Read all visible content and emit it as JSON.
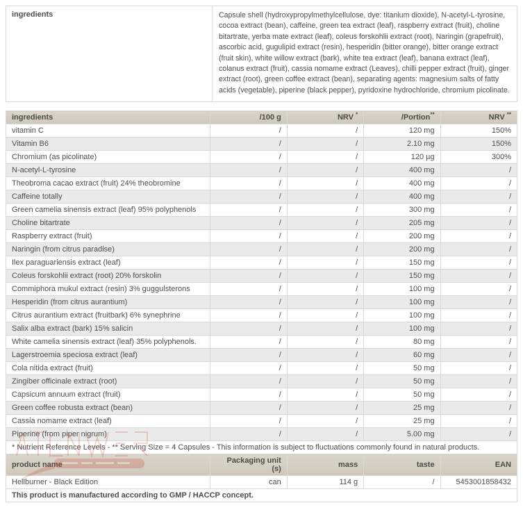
{
  "info_block": {
    "label": "ingredients",
    "text": "Capsule shell (hydroxypropylmethylcellulose, dye: titanium dioxide), N-acetyl-L-tyrosine, cocoa extract (bean), caffeine, green tea extract (leaf), raspberry extract (fruit), choline bitartrate, yerba mate extract (leaf), coleus forskohlii extract (root), Naringin (grapefruit), ascorbic acid, gugulipid extract (resin), hesperidin (bitter orange), bitter orange extract (fruit skin), white willow extract (bark), white tea extract (leaf), banana extract (leaf), colanus extract (fruit), cassia nomame extract (Leaves), chilli pepper extract (fruit), ginger extract (root), green coffee extract (bean), separating agents: magnesium salts of fatty acids (vegetable), piperine (black pepper), pyridoxine hydrochloride, chromium picolinate."
  },
  "nutrition_table": {
    "headers": [
      {
        "text": "ingredients",
        "sup": ""
      },
      {
        "text": "/100 g",
        "sup": ""
      },
      {
        "text": "NRV",
        "sup": "*"
      },
      {
        "text": "/Portion",
        "sup": "**"
      },
      {
        "text": "NRV",
        "sup": "**"
      }
    ],
    "rows": [
      [
        "vitamin C",
        "/",
        "/",
        "120 mg",
        "150%"
      ],
      [
        "Vitamin B6",
        "/",
        "/",
        "2.10 mg",
        "150%"
      ],
      [
        "Chromium (as picolinate)",
        "/",
        "/",
        "120 µg",
        "300%"
      ],
      [
        "N-acetyl-L-tyrosine",
        "/",
        "/",
        "400 mg",
        "/"
      ],
      [
        "Theobroma cacao extract (fruit) 24% theobromine",
        "/",
        "/",
        "400 mg",
        "/"
      ],
      [
        "Caffeine totally",
        "/",
        "/",
        "400 mg",
        "/"
      ],
      [
        "Green camelia sinensis extract (leaf) 95% polyphenols",
        "/",
        "/",
        "300 mg",
        "/"
      ],
      [
        "Choline bitartrate",
        "/",
        "/",
        "205 mg",
        "/"
      ],
      [
        "Raspberry extract (fruit)",
        "/",
        "/",
        "200 mg",
        "/"
      ],
      [
        "Naringin (from citrus paradise)",
        "/",
        "/",
        "200 mg",
        "/"
      ],
      [
        "Ilex paraguariensis extract (leaf)",
        "/",
        "/",
        "150 mg",
        "/"
      ],
      [
        "Coleus forskohlii extract (root) 20% forskolin",
        "/",
        "/",
        "150 mg",
        "/"
      ],
      [
        "Commiphora mukul extract (resin) 3% guggulsterons",
        "/",
        "/",
        "100 mg",
        "/"
      ],
      [
        "Hesperidin (from citrus aurantium)",
        "/",
        "/",
        "100 mg",
        "/"
      ],
      [
        "Citrus aurantium extract (fruitbark) 6% synephrine",
        "/",
        "/",
        "100 mg",
        "/"
      ],
      [
        "Salix alba extract (bark) 15% salicin",
        "/",
        "/",
        "100 mg",
        "/"
      ],
      [
        "White camelia sinensis extract (leaf) 35% polyphenols.",
        "/",
        "/",
        "80 mg",
        "/"
      ],
      [
        "Lagerstroemia speciosa extract (leaf)",
        "/",
        "/",
        "60 mg",
        "/"
      ],
      [
        "Cola nitida extract (fruit)",
        "/",
        "/",
        "50 mg",
        "/"
      ],
      [
        "Zingiber officinale extract (root)",
        "/",
        "/",
        "50 mg",
        "/"
      ],
      [
        "Capsicum annuum extract (fruit)",
        "/",
        "/",
        "50 mg",
        "/"
      ],
      [
        "Green coffee robusta extract (bean)",
        "/",
        "/",
        "25 mg",
        "/"
      ],
      [
        "Cassia nomame extract (leaf)",
        "/",
        "/",
        "25 mg",
        "/"
      ],
      [
        "Piperine (from piper nigrum)",
        "/",
        "/",
        "5.00 mg",
        "/"
      ]
    ],
    "footnote": "* Nutrient Reference Levels - ** Serving Size = 4 Capsules - This information is subject to fluctuations commonly found in natural products."
  },
  "product_table": {
    "headers": [
      "product name",
      "Packaging unit (s)",
      "mass",
      "taste",
      "EAN"
    ],
    "rows": [
      [
        "Hellburner - Black Edition",
        "can",
        "114 g",
        "/",
        "5453001858432"
      ]
    ],
    "note": "This product is manufactured according to GMP / HACCP concept."
  },
  "colors": {
    "header_bg": "#d4cdbf",
    "row_alt": "#eaeaea",
    "border": "#d9d9d9",
    "text": "#4d4d4d",
    "watermark": "#c0392b"
  }
}
